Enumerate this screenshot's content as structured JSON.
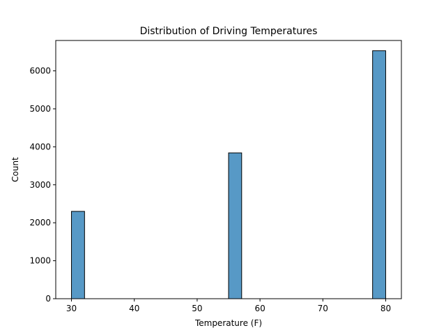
{
  "chart_data": {
    "type": "bar",
    "title": "Distribution of Driving Temperatures",
    "xlabel": "Temperature (F)",
    "ylabel": "Count",
    "xlim": [
      27.5,
      82.5
    ],
    "ylim": [
      0,
      6800
    ],
    "xticks": [
      30,
      40,
      50,
      60,
      70,
      80
    ],
    "yticks": [
      0,
      1000,
      2000,
      3000,
      4000,
      5000,
      6000
    ],
    "bin_width": 2.083,
    "bins": [
      {
        "x_start": 30.0,
        "x_end": 32.083,
        "count": 2300
      },
      {
        "x_start": 55.0,
        "x_end": 57.083,
        "count": 3840
      },
      {
        "x_start": 77.917,
        "x_end": 80.0,
        "count": 6530
      }
    ],
    "bar_color": "#5799c6",
    "edge_color": "#000000",
    "grid": false
  }
}
